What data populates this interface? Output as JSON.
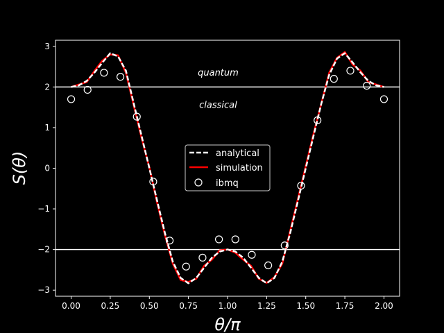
{
  "chart_data": {
    "type": "line",
    "title": "",
    "xlabel": "θ/π",
    "ylabel": "S(θ)",
    "xlim": [
      -0.1,
      2.1
    ],
    "ylim": [
      -3.15,
      3.15
    ],
    "x_ticks": [
      "0.00",
      "0.25",
      "0.50",
      "0.75",
      "1.00",
      "1.25",
      "1.50",
      "1.75",
      "2.00"
    ],
    "y_ticks": [
      "−3",
      "−2",
      "−1",
      "0",
      "1",
      "2",
      "3"
    ],
    "hlines": [
      2,
      -2
    ],
    "annotations": [
      {
        "text": "quantum",
        "x": 0.94,
        "y": 2.35
      },
      {
        "text": "classical",
        "x": 0.94,
        "y": 1.55
      }
    ],
    "legend": {
      "placement": "center",
      "entries": [
        "analytical",
        "simulation",
        "ibmq"
      ]
    },
    "series": [
      {
        "name": "analytical",
        "style": "dashed",
        "color": "#ffffff",
        "x": [
          0.0,
          0.05,
          0.1,
          0.15,
          0.2,
          0.25,
          0.3,
          0.35,
          0.4,
          0.45,
          0.5,
          0.55,
          0.6,
          0.65,
          0.7,
          0.75,
          0.8,
          0.85,
          0.9,
          0.95,
          1.0,
          1.05,
          1.1,
          1.15,
          1.2,
          1.25,
          1.3,
          1.35,
          1.4,
          1.45,
          1.5,
          1.55,
          1.6,
          1.65,
          1.7,
          1.75,
          1.8,
          1.85,
          1.9,
          1.95,
          2.0
        ],
        "y": [
          2.0,
          2.04,
          2.15,
          2.36,
          2.6,
          2.83,
          2.75,
          2.4,
          1.6,
          0.8,
          0.0,
          -0.8,
          -1.6,
          -2.3,
          -2.7,
          -2.83,
          -2.7,
          -2.45,
          -2.2,
          -2.05,
          -2.0,
          -2.05,
          -2.2,
          -2.45,
          -2.7,
          -2.83,
          -2.7,
          -2.3,
          -1.6,
          -0.8,
          0.0,
          0.8,
          1.6,
          2.3,
          2.7,
          2.83,
          2.6,
          2.36,
          2.15,
          2.04,
          2.0
        ]
      },
      {
        "name": "simulation",
        "style": "solid",
        "color": "#ff0000",
        "x": [
          0.0,
          0.05,
          0.1,
          0.15,
          0.2,
          0.25,
          0.3,
          0.35,
          0.4,
          0.45,
          0.5,
          0.55,
          0.6,
          0.65,
          0.7,
          0.75,
          0.8,
          0.85,
          0.9,
          0.95,
          1.0,
          1.05,
          1.1,
          1.15,
          1.2,
          1.25,
          1.3,
          1.35,
          1.4,
          1.45,
          1.5,
          1.55,
          1.6,
          1.65,
          1.7,
          1.75,
          1.8,
          1.85,
          1.9,
          1.95,
          2.0
        ],
        "y": [
          2.0,
          2.06,
          2.12,
          2.4,
          2.65,
          2.8,
          2.78,
          2.35,
          1.55,
          0.75,
          0.02,
          -0.85,
          -1.65,
          -2.35,
          -2.75,
          -2.8,
          -2.72,
          -2.4,
          -2.25,
          -2.02,
          -2.0,
          -2.08,
          -2.25,
          -2.4,
          -2.72,
          -2.82,
          -2.68,
          -2.35,
          -1.55,
          -0.75,
          0.05,
          0.85,
          1.6,
          2.35,
          2.72,
          2.86,
          2.55,
          2.4,
          2.12,
          2.06,
          2.0
        ]
      },
      {
        "name": "ibmq",
        "style": "markers",
        "color": "#ffffff",
        "x": [
          0.0,
          0.105,
          0.21,
          0.315,
          0.42,
          0.525,
          0.63,
          0.735,
          0.84,
          0.945,
          1.05,
          1.155,
          1.26,
          1.365,
          1.47,
          1.575,
          1.68,
          1.785,
          1.89,
          2.0
        ],
        "y": [
          1.7,
          1.93,
          2.35,
          2.25,
          1.27,
          -0.33,
          -1.78,
          -2.42,
          -2.2,
          -1.75,
          -1.75,
          -2.13,
          -2.39,
          -1.9,
          -0.43,
          1.18,
          2.2,
          2.4,
          2.03,
          1.7
        ]
      }
    ]
  }
}
